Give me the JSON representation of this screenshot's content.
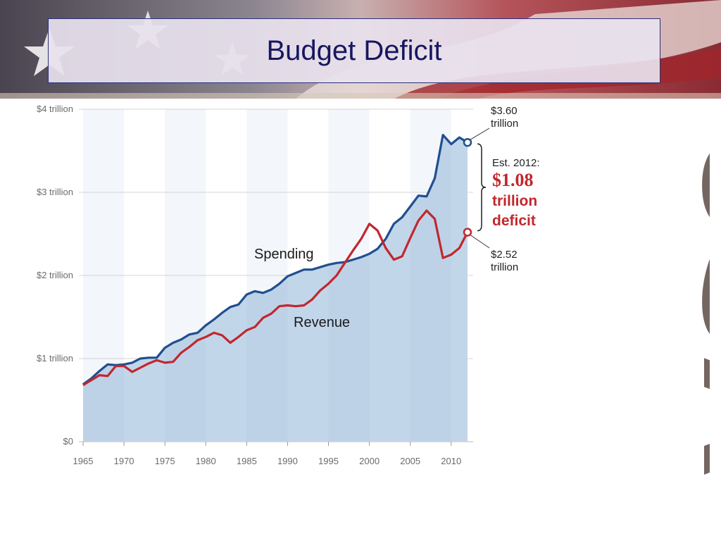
{
  "slide": {
    "title": "Budget Deficit"
  },
  "decoration": {
    "usa_text": "USA"
  },
  "chart_data": {
    "type": "area",
    "title": "",
    "xlabel": "",
    "ylabel": "",
    "xlim": [
      1965,
      2012
    ],
    "ylim": [
      0,
      4
    ],
    "grid": true,
    "y_ticks": [
      {
        "value": 0,
        "label": "$0"
      },
      {
        "value": 1,
        "label": "$1 trillion"
      },
      {
        "value": 2,
        "label": "$2 trillion"
      },
      {
        "value": 3,
        "label": "$3 trillion"
      },
      {
        "value": 4,
        "label": "$4 trillion"
      }
    ],
    "x_ticks": [
      {
        "value": 1965,
        "label": "1965"
      },
      {
        "value": 1970,
        "label": "1970"
      },
      {
        "value": 1975,
        "label": "1975"
      },
      {
        "value": 1980,
        "label": "1980"
      },
      {
        "value": 1985,
        "label": "1985"
      },
      {
        "value": 1990,
        "label": "1990"
      },
      {
        "value": 1995,
        "label": "1995"
      },
      {
        "value": 2000,
        "label": "2000"
      },
      {
        "value": 2005,
        "label": "2005"
      },
      {
        "value": 2010,
        "label": "2010"
      }
    ],
    "x": [
      1965,
      1966,
      1967,
      1968,
      1969,
      1970,
      1971,
      1972,
      1973,
      1974,
      1975,
      1976,
      1977,
      1978,
      1979,
      1980,
      1981,
      1982,
      1983,
      1984,
      1985,
      1986,
      1987,
      1988,
      1989,
      1990,
      1991,
      1992,
      1993,
      1994,
      1995,
      1996,
      1997,
      1998,
      1999,
      2000,
      2001,
      2002,
      2003,
      2004,
      2005,
      2006,
      2007,
      2008,
      2009,
      2010,
      2011,
      2012
    ],
    "series": [
      {
        "name": "Spending",
        "color": "#1f4f8f",
        "fill": "#c2d6ea",
        "values": [
          0.69,
          0.76,
          0.85,
          0.93,
          0.92,
          0.93,
          0.95,
          1.0,
          1.01,
          1.01,
          1.13,
          1.19,
          1.23,
          1.29,
          1.31,
          1.4,
          1.47,
          1.55,
          1.62,
          1.65,
          1.77,
          1.81,
          1.79,
          1.83,
          1.9,
          1.99,
          2.03,
          2.07,
          2.07,
          2.1,
          2.13,
          2.15,
          2.16,
          2.19,
          2.22,
          2.26,
          2.32,
          2.44,
          2.62,
          2.7,
          2.83,
          2.96,
          2.95,
          3.17,
          3.69,
          3.58,
          3.66,
          3.6
        ]
      },
      {
        "name": "Revenue",
        "color": "#c1272d",
        "values": [
          0.68,
          0.74,
          0.8,
          0.79,
          0.91,
          0.91,
          0.84,
          0.89,
          0.94,
          0.98,
          0.95,
          0.96,
          1.07,
          1.14,
          1.22,
          1.26,
          1.31,
          1.28,
          1.19,
          1.26,
          1.34,
          1.38,
          1.49,
          1.54,
          1.63,
          1.64,
          1.63,
          1.64,
          1.71,
          1.82,
          1.9,
          2.0,
          2.15,
          2.3,
          2.44,
          2.62,
          2.54,
          2.33,
          2.19,
          2.23,
          2.45,
          2.66,
          2.78,
          2.68,
          2.21,
          2.25,
          2.33,
          2.52
        ]
      }
    ],
    "annotations": {
      "spending_end": {
        "value": "$3.60",
        "unit": "trillion"
      },
      "revenue_end": {
        "value": "$2.52",
        "unit": "trillion"
      },
      "deficit": {
        "label": "Est. 2012:",
        "value": "$1.08",
        "line1": "trillion",
        "line2": "deficit"
      }
    }
  }
}
